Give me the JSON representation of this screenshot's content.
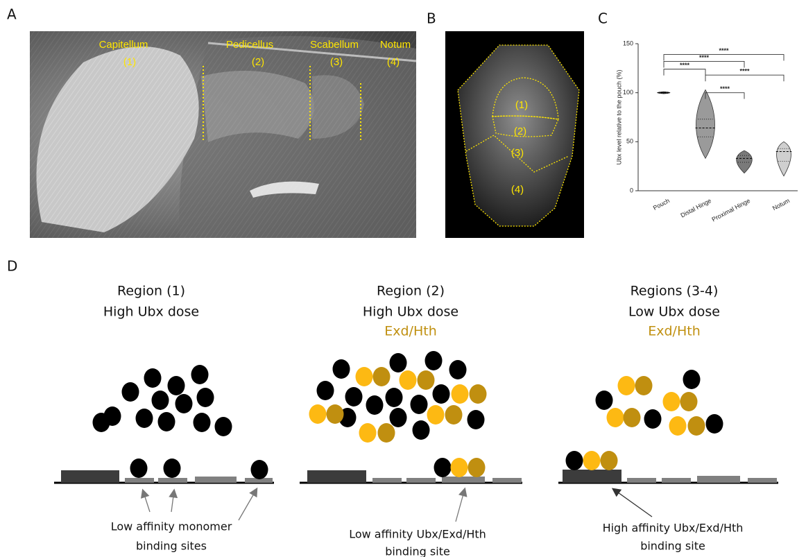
{
  "panels": [
    "A",
    "B",
    "C",
    "D"
  ],
  "panel_a": {
    "regions": [
      {
        "name": "Capitellum",
        "number": "(1)"
      },
      {
        "name": "Pedicellus",
        "number": "(2)"
      },
      {
        "name": "Scabellum",
        "number": "(3)"
      },
      {
        "name": "Notum",
        "number": "(4)"
      }
    ]
  },
  "panel_b": {
    "regions": [
      "(1)",
      "(2)",
      "(3)",
      "(4)"
    ]
  },
  "chart_data": {
    "type": "violin",
    "ylabel": "Ubx level relative to the pouch (%)",
    "categories": [
      "Pouch",
      "Distal Hinge",
      "Proximal Hinge",
      "Notum"
    ],
    "values": [
      100,
      64,
      33,
      40
    ],
    "q1": [
      99.5,
      55,
      29,
      30
    ],
    "q3": [
      100.5,
      73,
      36,
      43
    ],
    "min": [
      99,
      33,
      18,
      15
    ],
    "max": [
      101,
      103,
      41,
      50
    ],
    "colors": [
      "#222222",
      "#9a9a9a",
      "#7a7a7a",
      "#cfcfcf"
    ],
    "ylim": [
      0,
      150
    ],
    "yticks": [
      0,
      50,
      100,
      150
    ],
    "comparisons": [
      {
        "pair": [
          0,
          3
        ],
        "y": 139,
        "label": "****"
      },
      {
        "pair": [
          0,
          2
        ],
        "y": 132,
        "label": "****"
      },
      {
        "pair": [
          0,
          1
        ],
        "y": 124,
        "label": "****"
      },
      {
        "pair": [
          1,
          3
        ],
        "y": 118,
        "label": "****"
      },
      {
        "pair": [
          1,
          2
        ],
        "y": 100,
        "label": "****"
      }
    ]
  },
  "panel_d": {
    "columns": [
      {
        "title": "Region (1)",
        "dose": "High Ubx dose",
        "caption": [
          "Low affinity monomer",
          "binding sites"
        ]
      },
      {
        "title": "Region (2)",
        "dose": "High Ubx dose",
        "cofactors": "Exd/Hth",
        "caption": [
          "Low affinity Ubx/Exd/Hth",
          "binding site"
        ]
      },
      {
        "title": "Regions (3-4)",
        "dose": "Low Ubx dose",
        "cofactors": "Exd/Hth",
        "caption": [
          "High affinity Ubx/Exd/Hth",
          "binding site"
        ]
      }
    ]
  }
}
